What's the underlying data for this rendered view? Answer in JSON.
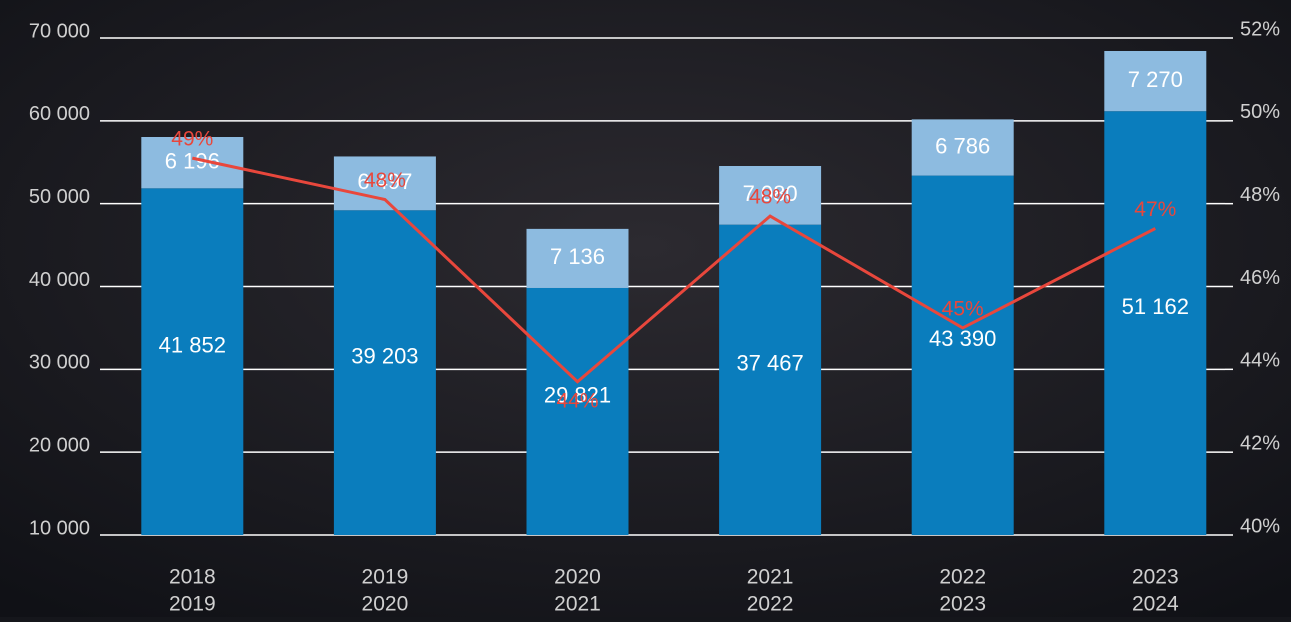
{
  "chart_data": {
    "type": "bar-line",
    "categories": [
      [
        "2018",
        "2019"
      ],
      [
        "2019",
        "2020"
      ],
      [
        "2020",
        "2021"
      ],
      [
        "2021",
        "2022"
      ],
      [
        "2022",
        "2023"
      ],
      [
        "2023",
        "2024"
      ]
    ],
    "ylim": [
      10000,
      70000
    ],
    "yticks": [
      {
        "value": 10000,
        "label": "10 000"
      },
      {
        "value": 20000,
        "label": "20 000"
      },
      {
        "value": 30000,
        "label": "30 000"
      },
      {
        "value": 40000,
        "label": "40 000"
      },
      {
        "value": 50000,
        "label": "50 000"
      },
      {
        "value": 60000,
        "label": "60 000"
      },
      {
        "value": 70000,
        "label": "70 000"
      }
    ],
    "y2lim": [
      40,
      52
    ],
    "y2ticks": [
      {
        "value": 40,
        "label": "40%"
      },
      {
        "value": 42,
        "label": "42%"
      },
      {
        "value": 44,
        "label": "44%"
      },
      {
        "value": 46,
        "label": "46%"
      },
      {
        "value": 48,
        "label": "48%"
      },
      {
        "value": 50,
        "label": "50%"
      },
      {
        "value": 52,
        "label": "52%"
      }
    ],
    "grid": true,
    "series": [
      {
        "type": "bar",
        "color": "#0a7dbd",
        "values": [
          41852,
          39203,
          29821,
          37467,
          43390,
          51162
        ],
        "value_labels": [
          "41 852",
          "39 203",
          "29 821",
          "37 467",
          "43 390",
          "51 162"
        ]
      },
      {
        "type": "bar",
        "color": "#8dbbe0",
        "values": [
          6196,
          6497,
          7136,
          7080,
          6786,
          7270
        ],
        "value_labels": [
          "6 196",
          "6 497",
          "7 136",
          "7 080",
          "6 786",
          "7 270"
        ]
      },
      {
        "type": "line",
        "axis": "y2",
        "color": "#e8473c",
        "values": [
          49.1,
          48.1,
          43.7,
          47.7,
          45.0,
          47.4
        ],
        "value_labels": [
          "49%",
          "48%",
          "44%",
          "48%",
          "45%",
          "47%"
        ]
      }
    ]
  }
}
